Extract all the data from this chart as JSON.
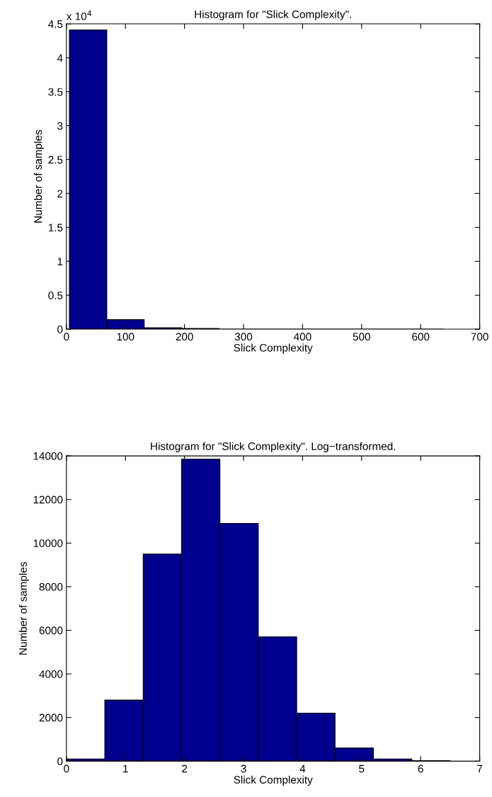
{
  "chart_data": [
    {
      "type": "histogram",
      "title": "Histogram for \"Slick Complexity\".",
      "xlabel": "Slick Complexity",
      "ylabel": "Number of samples",
      "color": "#00008f",
      "bins": [
        5,
        68.4,
        131.8,
        195.2,
        258.6,
        322,
        385.4,
        448.8,
        512.2,
        575.6,
        639
      ],
      "values": [
        4.41,
        0.14,
        0.02,
        0.01,
        0,
        0,
        0,
        0,
        0,
        0
      ],
      "xlim": [
        0,
        700
      ],
      "xticks": [
        0,
        100,
        200,
        300,
        400,
        500,
        600,
        700
      ],
      "ylim": [
        0,
        4.5
      ],
      "yticks": [
        0,
        0.5,
        1,
        1.5,
        2,
        2.5,
        3,
        3.5,
        4,
        4.5
      ],
      "annotations": [
        "x 10$^{4}$"
      ],
      "grid": false,
      "legend": false
    },
    {
      "type": "histogram",
      "title": "Histogram for \"Slick Complexity\". Log−transformed.",
      "xlabel": "Slick Complexity",
      "ylabel": "Number of samples",
      "color": "#00008f",
      "bins": [
        0,
        0.65,
        1.3,
        1.95,
        2.6,
        3.25,
        3.9,
        4.55,
        5.2,
        5.85,
        6.5
      ],
      "values": [
        100,
        2800,
        9500,
        13850,
        10900,
        5700,
        2200,
        600,
        100,
        20
      ],
      "xlim": [
        0,
        7
      ],
      "xticks": [
        0,
        1,
        2,
        3,
        4,
        5,
        6,
        7
      ],
      "ylim": [
        0,
        14000
      ],
      "yticks": [
        0,
        2000,
        4000,
        6000,
        8000,
        10000,
        12000,
        14000
      ],
      "grid": false,
      "legend": false
    }
  ]
}
